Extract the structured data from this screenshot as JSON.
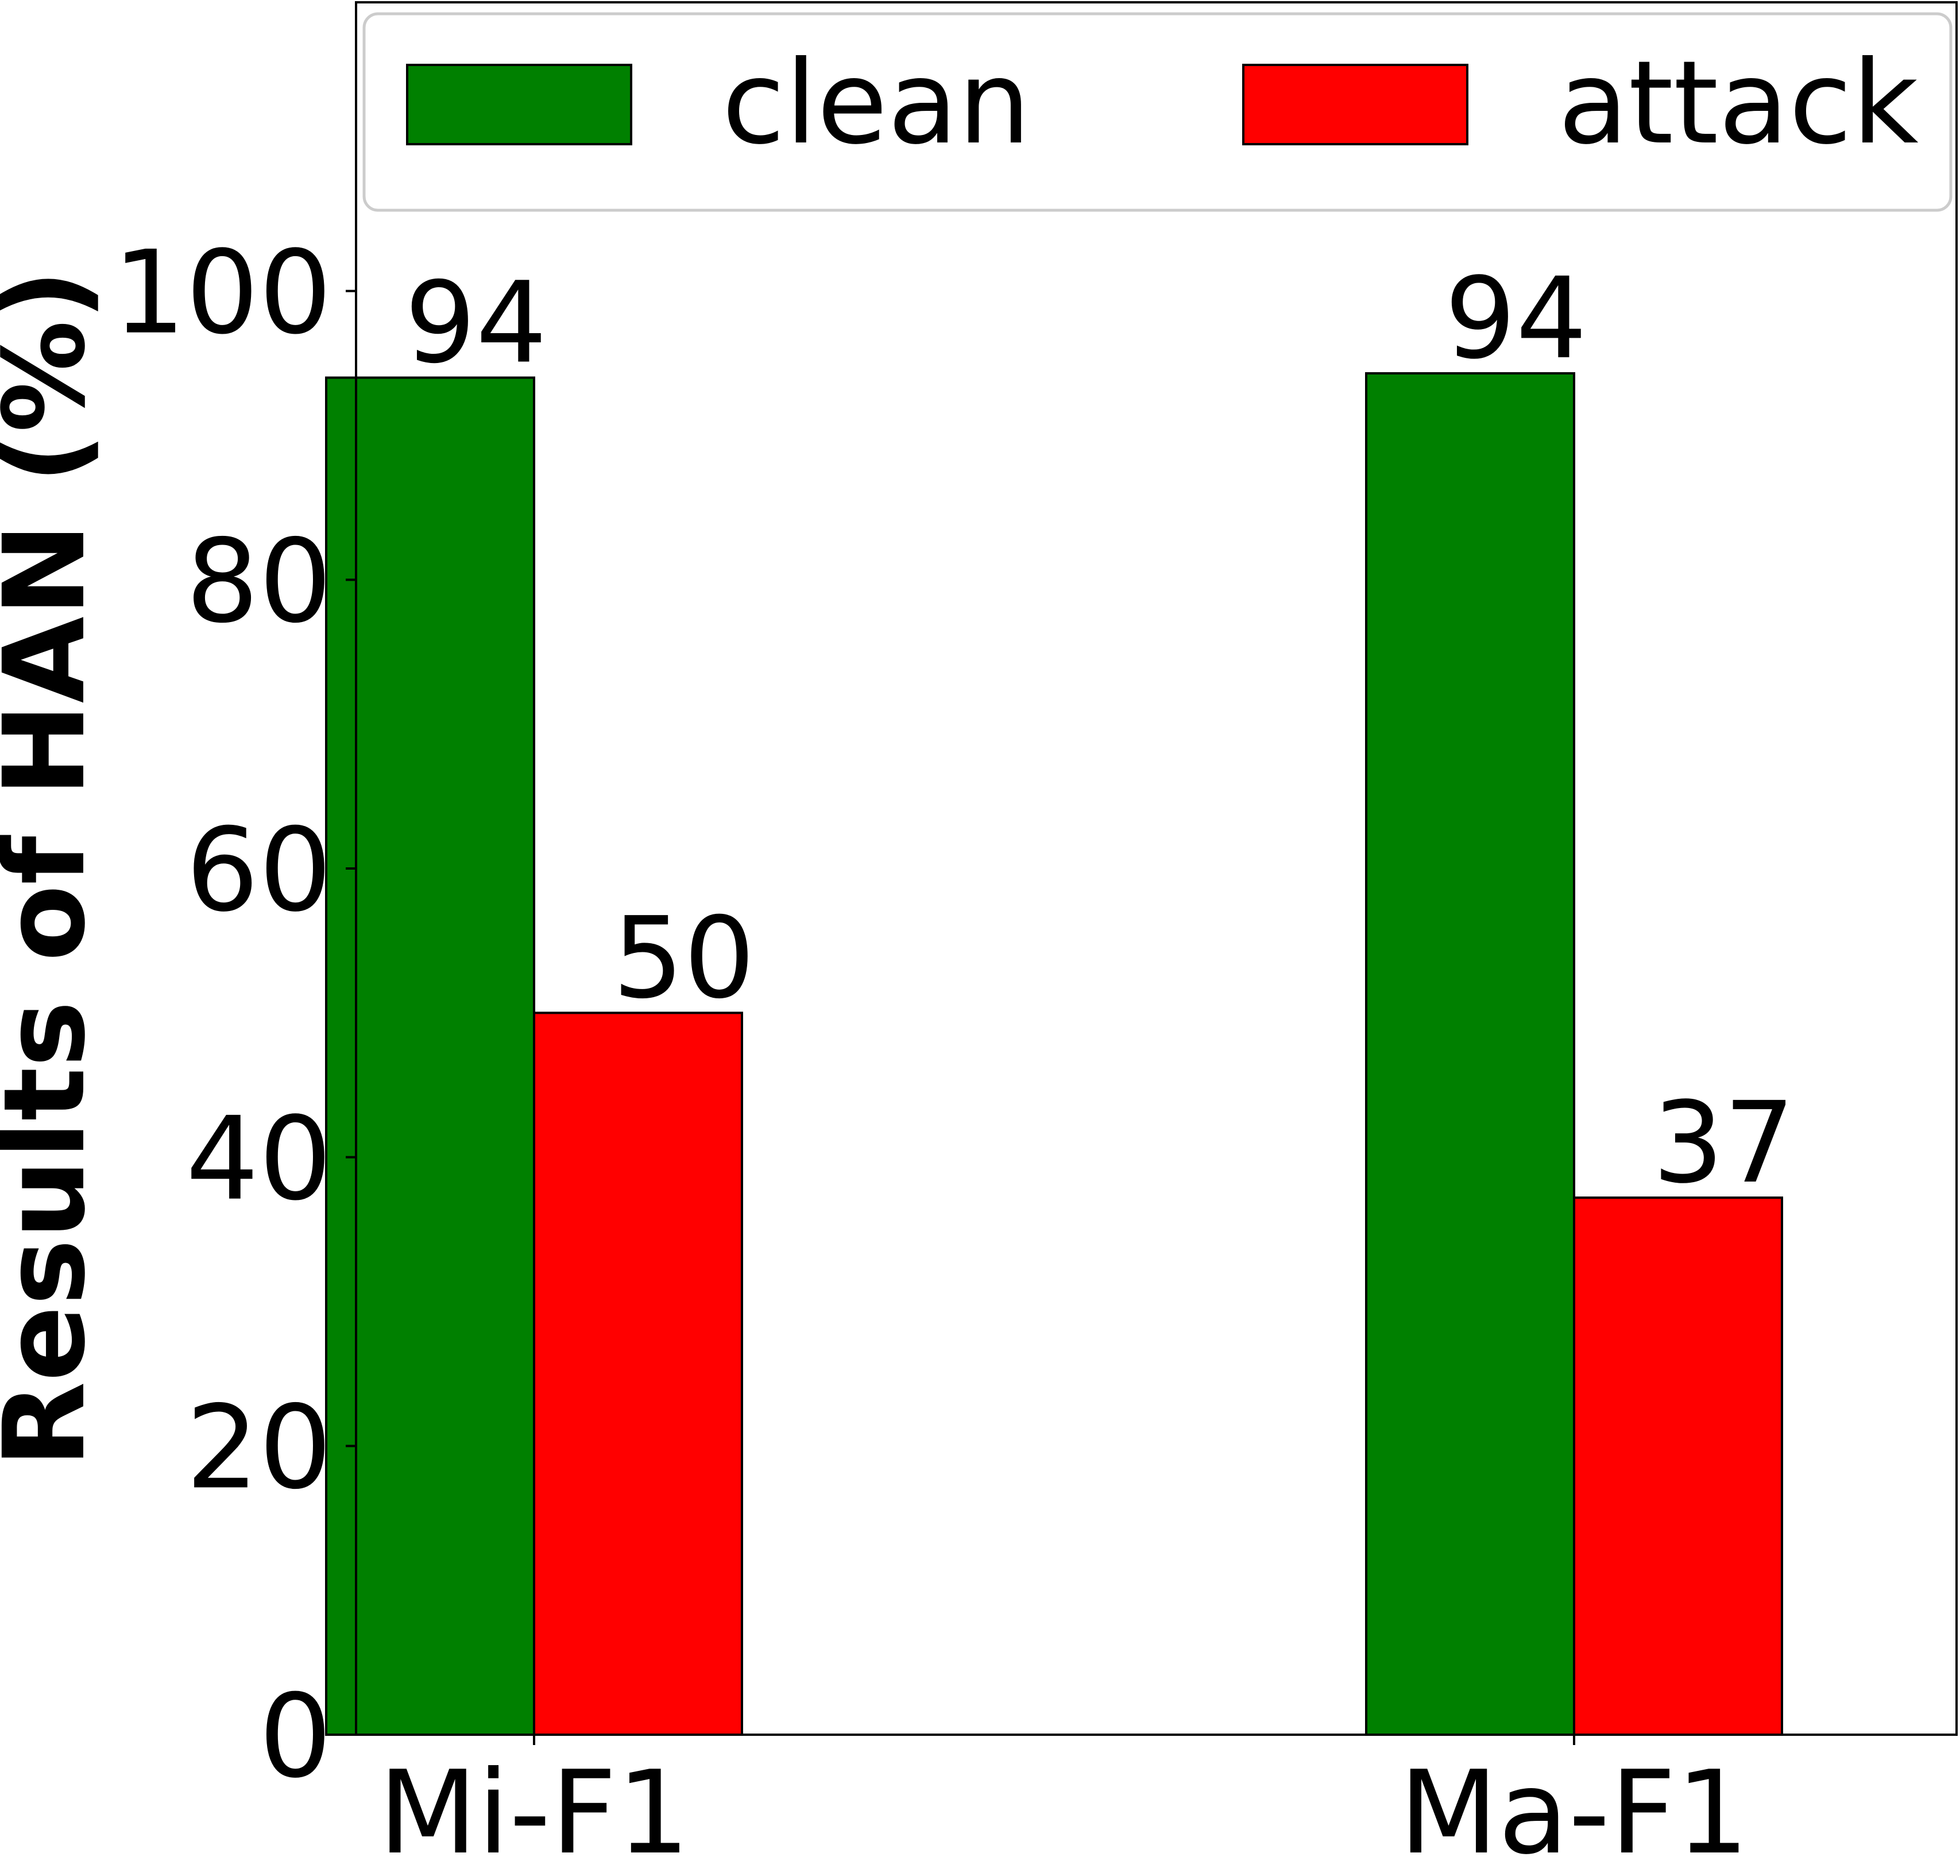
{
  "chart_data": {
    "type": "bar",
    "categories": [
      "Mi-F1",
      "Ma-F1"
    ],
    "series": [
      {
        "name": "clean",
        "values": [
          94,
          94.3
        ],
        "labels": [
          "94",
          "94"
        ],
        "color": "#008000"
      },
      {
        "name": "attack",
        "values": [
          50,
          37.2
        ],
        "labels": [
          "50",
          "37"
        ],
        "color": "#ff0000"
      }
    ],
    "title": "",
    "xlabel": "",
    "ylabel_prefix": "Results of ",
    "ylabel_bold": "HAN",
    "ylabel_suffix": " (%)",
    "ylim": [
      0,
      120
    ],
    "yticks": [
      0,
      20,
      40,
      60,
      80,
      100
    ],
    "ytick_labels": [
      "0",
      "20",
      "40",
      "60",
      "80",
      "100"
    ],
    "grid": false,
    "legend_position": "top"
  }
}
